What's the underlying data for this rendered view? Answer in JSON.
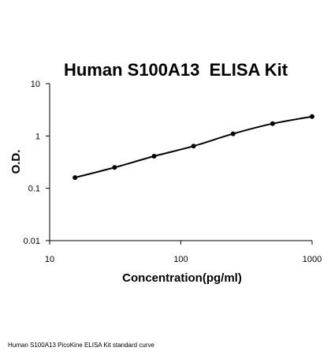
{
  "chart_data": {
    "type": "line",
    "title": "Human S100A13  ELISA Kit",
    "xlabel": "Concentration(pg/ml)",
    "ylabel": "O.D.",
    "x_scale": "log",
    "y_scale": "log",
    "xlim": [
      10,
      1000
    ],
    "ylim": [
      0.01,
      10
    ],
    "x_ticks": [
      10,
      100,
      1000
    ],
    "x_tick_labels": [
      "10",
      "100",
      "1000"
    ],
    "y_ticks": [
      0.01,
      0.1,
      1,
      10
    ],
    "y_tick_labels": [
      "0.01",
      "0.1",
      "1",
      "10"
    ],
    "grid": false,
    "legend": "none",
    "series": [
      {
        "x": [
          15.6,
          31.25,
          62.5,
          125,
          250,
          500,
          1000
        ],
        "y": [
          0.16,
          0.25,
          0.41,
          0.64,
          1.1,
          1.72,
          2.35
        ]
      }
    ],
    "line_color": "#000000"
  },
  "caption": "Human S100A13 PicoKine ELISA Kit standard curve"
}
